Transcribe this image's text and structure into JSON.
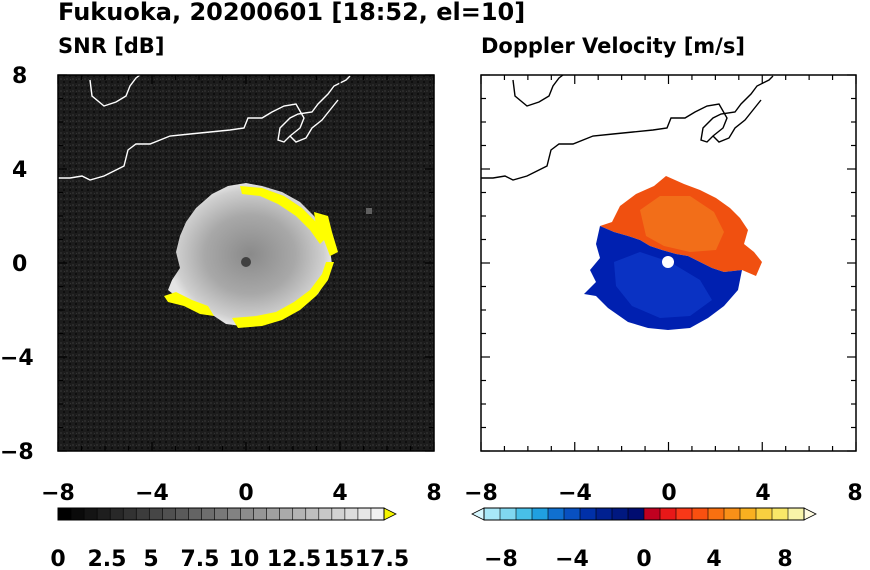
{
  "figure": {
    "title": "Fukuoka, 20200601 [18:52, el=10]"
  },
  "chart_data": [
    {
      "type": "heatmap",
      "title": "SNR [dB]",
      "xlim": [
        -8,
        8
      ],
      "ylim": [
        -8,
        8
      ],
      "x_ticks": [
        "−8",
        "−4",
        "0",
        "4",
        "8"
      ],
      "y_ticks": [
        "8",
        "4",
        "0",
        "−4",
        "−8"
      ],
      "colorbar": {
        "min": 0,
        "max": 18.75,
        "step": 0.75,
        "extend": "max",
        "ticks": [
          "0",
          "2.5",
          "5",
          "7.5",
          "10",
          "12.5",
          "15",
          "17.5"
        ],
        "colors": [
          "#000000",
          "#0a0a0a",
          "#141414",
          "#1e1e1e",
          "#282828",
          "#323232",
          "#3c3c3c",
          "#464646",
          "#505050",
          "#5a5a5a",
          "#646464",
          "#6e6e6e",
          "#787878",
          "#828282",
          "#8c8c8c",
          "#969696",
          "#a0a0a0",
          "#aaaaaa",
          "#b4b4b4",
          "#bebebe",
          "#c8c8c8",
          "#d2d2d2",
          "#dcdcdc",
          "#e6e6e6",
          "#f0f0f0"
        ],
        "over_color": "#f5f500"
      },
      "echo_radius_km": 3.3,
      "saturated_ring_color": "#ffff00",
      "background_noise_color": "#1c1c1c"
    },
    {
      "type": "heatmap",
      "title": "Doppler Velocity [m/s]",
      "xlim": [
        -8,
        8
      ],
      "ylim": [
        -8,
        8
      ],
      "x_ticks": [
        "−8",
        "−4",
        "0",
        "4",
        "8"
      ],
      "y_ticks": [],
      "colorbar": {
        "min": -10,
        "max": 10,
        "step": 1,
        "extend": "both",
        "ticks": [
          "−8",
          "−4",
          "0",
          "4",
          "8"
        ],
        "colors": [
          "#a8e8f8",
          "#80d8f0",
          "#48c0e8",
          "#20a0e0",
          "#1070d0",
          "#0850c0",
          "#0030a8",
          "#002090",
          "#001880",
          "#000c70",
          "#c00020",
          "#e81818",
          "#f83818",
          "#f85010",
          "#f87010",
          "#f89018",
          "#f8b020",
          "#f8d040",
          "#f8e868",
          "#f8f4a8"
        ],
        "under_color": "#d8f8ff",
        "over_color": "#fffbe0"
      },
      "approaching_color": "#0020b0",
      "receding_color": "#f05010"
    }
  ]
}
